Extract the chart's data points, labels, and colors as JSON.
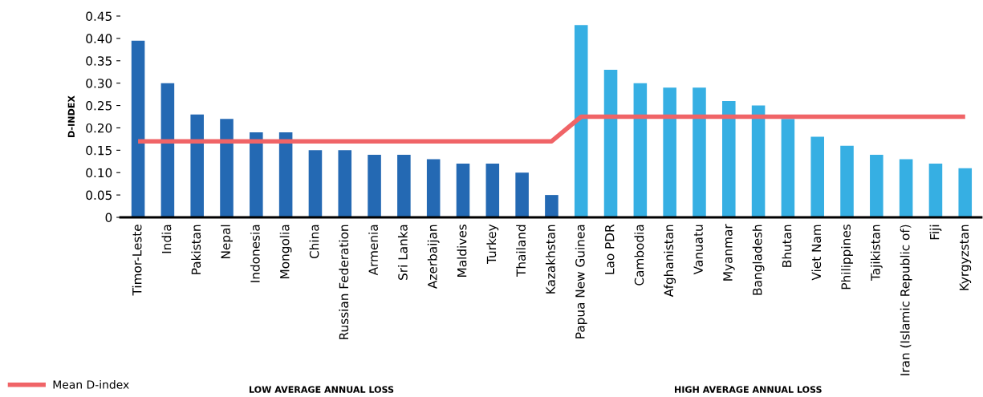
{
  "chart_data": {
    "type": "bar",
    "ylabel": "D-INDEX",
    "categories": [
      "Timor-Leste",
      "India",
      "Pakistan",
      "Nepal",
      "Indonesia",
      "Mongolia",
      "China",
      "Russian Federation",
      "Armenia",
      "Sri Lanka",
      "Azerbaijan",
      "Maldives",
      "Turkey",
      "Thailand",
      "Kazakhstan",
      "Papua New Guinea",
      "Lao PDR",
      "Cambodia",
      "Afghanistan",
      "Vanuatu",
      "Myanmar",
      "Bangladesh",
      "Bhutan",
      "Viet Nam",
      "Philippines",
      "Tajikistan",
      "Iran (Islamic Republic of)",
      "Fiji",
      "Kyrgyzstan"
    ],
    "series": [
      {
        "values": [
          0.395,
          0.3,
          0.23,
          0.22,
          0.19,
          0.19,
          0.15,
          0.15,
          0.14,
          0.14,
          0.13,
          0.12,
          0.12,
          0.1,
          0.05,
          0.43,
          0.33,
          0.3,
          0.29,
          0.29,
          0.26,
          0.25,
          0.22,
          0.18,
          0.16,
          0.14,
          0.13,
          0.12,
          0.11
        ],
        "colors": [
          "#2469b3",
          "#2469b3",
          "#2469b3",
          "#2469b3",
          "#2469b3",
          "#2469b3",
          "#2469b3",
          "#2469b3",
          "#2469b3",
          "#2469b3",
          "#2469b3",
          "#2469b3",
          "#2469b3",
          "#2469b3",
          "#2469b3",
          "#36afe3",
          "#36afe3",
          "#36afe3",
          "#36afe3",
          "#36afe3",
          "#36afe3",
          "#36afe3",
          "#36afe3",
          "#36afe3",
          "#36afe3",
          "#36afe3",
          "#36afe3",
          "#36afe3",
          "#36afe3"
        ]
      },
      {
        "type": "line",
        "name": "Mean D-index",
        "color": "#f06467",
        "values": [
          0.17,
          0.17,
          0.17,
          0.17,
          0.17,
          0.17,
          0.17,
          0.17,
          0.17,
          0.17,
          0.17,
          0.17,
          0.17,
          0.17,
          0.17,
          0.225,
          0.225,
          0.225,
          0.225,
          0.225,
          0.225,
          0.225,
          0.225,
          0.225,
          0.225,
          0.225,
          0.225,
          0.225,
          0.225
        ]
      }
    ],
    "ylim": [
      0,
      0.45
    ],
    "yticks": [
      0,
      {
        "value": 0.05,
        "label": "0.05"
      },
      {
        "value": 0.1,
        "label": "0.10"
      },
      {
        "value": 0.15,
        "label": "0.15"
      },
      {
        "value": 0.2,
        "label": "0.20"
      },
      {
        "value": 0.25,
        "label": "0.25"
      },
      {
        "value": 0.3,
        "label": "0.30"
      },
      {
        "value": 0.35,
        "label": "0.35"
      },
      {
        "value": 0.4,
        "label": "0.40"
      },
      {
        "value": 0.45,
        "label": "0.45"
      }
    ],
    "grid": false,
    "legend": "bottom left",
    "annotations": [
      "LOW AVERAGE ANNUAL LOSS",
      "HIGH AVERAGE ANNUAL LOSS"
    ]
  }
}
